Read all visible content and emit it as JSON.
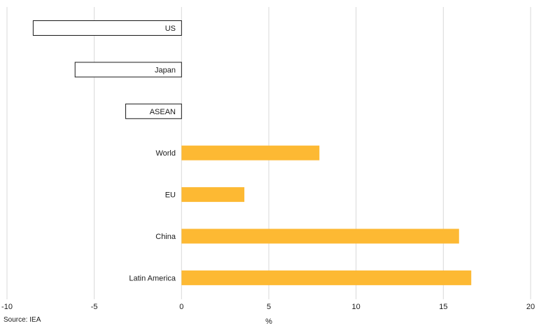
{
  "chart_data": {
    "type": "bar",
    "orientation": "horizontal",
    "categories": [
      "US",
      "Japan",
      "ASEAN",
      "World",
      "EU",
      "China",
      "Latin America"
    ],
    "values": [
      -8.5,
      -6.1,
      -3.2,
      7.9,
      3.6,
      15.9,
      16.6
    ],
    "xlabel": "%",
    "xlim": [
      -10,
      20
    ],
    "xticks": [
      -10,
      -5,
      0,
      5,
      10,
      15,
      20
    ],
    "grid": "vertical",
    "colors": {
      "positive": "#FDB933",
      "negative_fill": "#ffffff",
      "negative_stroke": "#1a1a1a",
      "grid": "#d9d9d9"
    }
  },
  "source": "Source: IEA"
}
